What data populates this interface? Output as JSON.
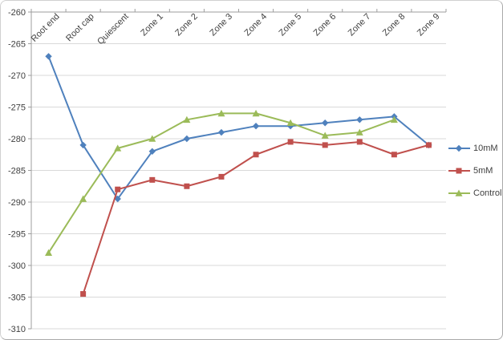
{
  "chart_data": {
    "type": "line",
    "title": "",
    "xlabel": "",
    "ylabel": "",
    "categories": [
      "Root end",
      "Root cap",
      "Quiescent",
      "Zone 1",
      "Zone 2",
      "Zone 3",
      "Zone 4",
      "Zone 5",
      "Zone 6",
      "Zone 7",
      "Zone 8",
      "Zone 9"
    ],
    "series": [
      {
        "name": "10mM",
        "color": "#4F81BD",
        "marker": "diamond",
        "values": [
          -267,
          -281,
          -289.5,
          -282,
          -280,
          -279,
          -278,
          -278,
          -277.5,
          -277,
          -276.5,
          -281
        ]
      },
      {
        "name": "5mM",
        "color": "#C0504D",
        "marker": "square",
        "values": [
          null,
          -304.5,
          -288,
          -286.5,
          -287.5,
          -286,
          -282.5,
          -280.5,
          -281,
          -280.5,
          -282.5,
          -281
        ]
      },
      {
        "name": "Control",
        "color": "#9BBB59",
        "marker": "triangle",
        "values": [
          -298,
          -289.5,
          -281.5,
          -280,
          -277,
          -276,
          -276,
          -277.5,
          -279.5,
          -279,
          -277,
          null
        ]
      }
    ],
    "ylim": [
      -310,
      -260
    ],
    "ytick_step": 5,
    "grid": true,
    "legend_position": "right",
    "x_label_rotation": 45,
    "gridline_color": "#D9D9D9",
    "axis_color": "#9E9E9E",
    "tick_label_color": "#3F3F3F"
  }
}
